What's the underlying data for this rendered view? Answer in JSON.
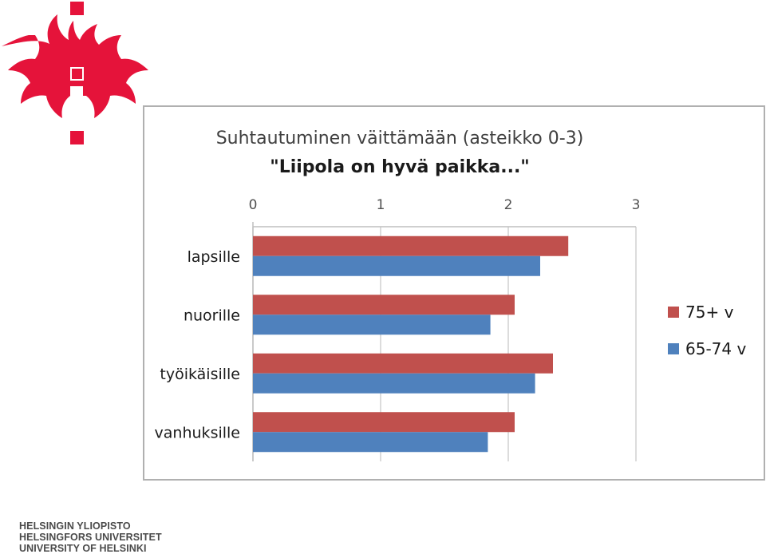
{
  "logo": {
    "name": "University of Helsinki flame logo",
    "color": "#e5133a"
  },
  "footer": {
    "line1": "HELSINGIN YLIOPISTO",
    "line2": "HELSINGFORS UNIVERSITET",
    "line3": "UNIVERSITY OF HELSINKI"
  },
  "chart_data": {
    "type": "bar",
    "orientation": "horizontal",
    "title": "Suhtautuminen väittämään (asteikko 0-3)",
    "subtitle": "\"Liipola on hyvä paikka...\"",
    "categories": [
      "lapsille",
      "nuorille",
      "työikäisille",
      "vanhuksille"
    ],
    "series": [
      {
        "name": "75+ v",
        "color": "#c0504d",
        "values": [
          2.47,
          2.05,
          2.35,
          2.05
        ]
      },
      {
        "name": "65-74 v",
        "color": "#4f81bd",
        "values": [
          2.25,
          1.86,
          2.21,
          1.84
        ]
      }
    ],
    "xlim": [
      0,
      3
    ],
    "xticks": [
      "0",
      "1",
      "2",
      "3"
    ],
    "xaxis_position": "top",
    "grid": true,
    "legend_position": "right"
  }
}
